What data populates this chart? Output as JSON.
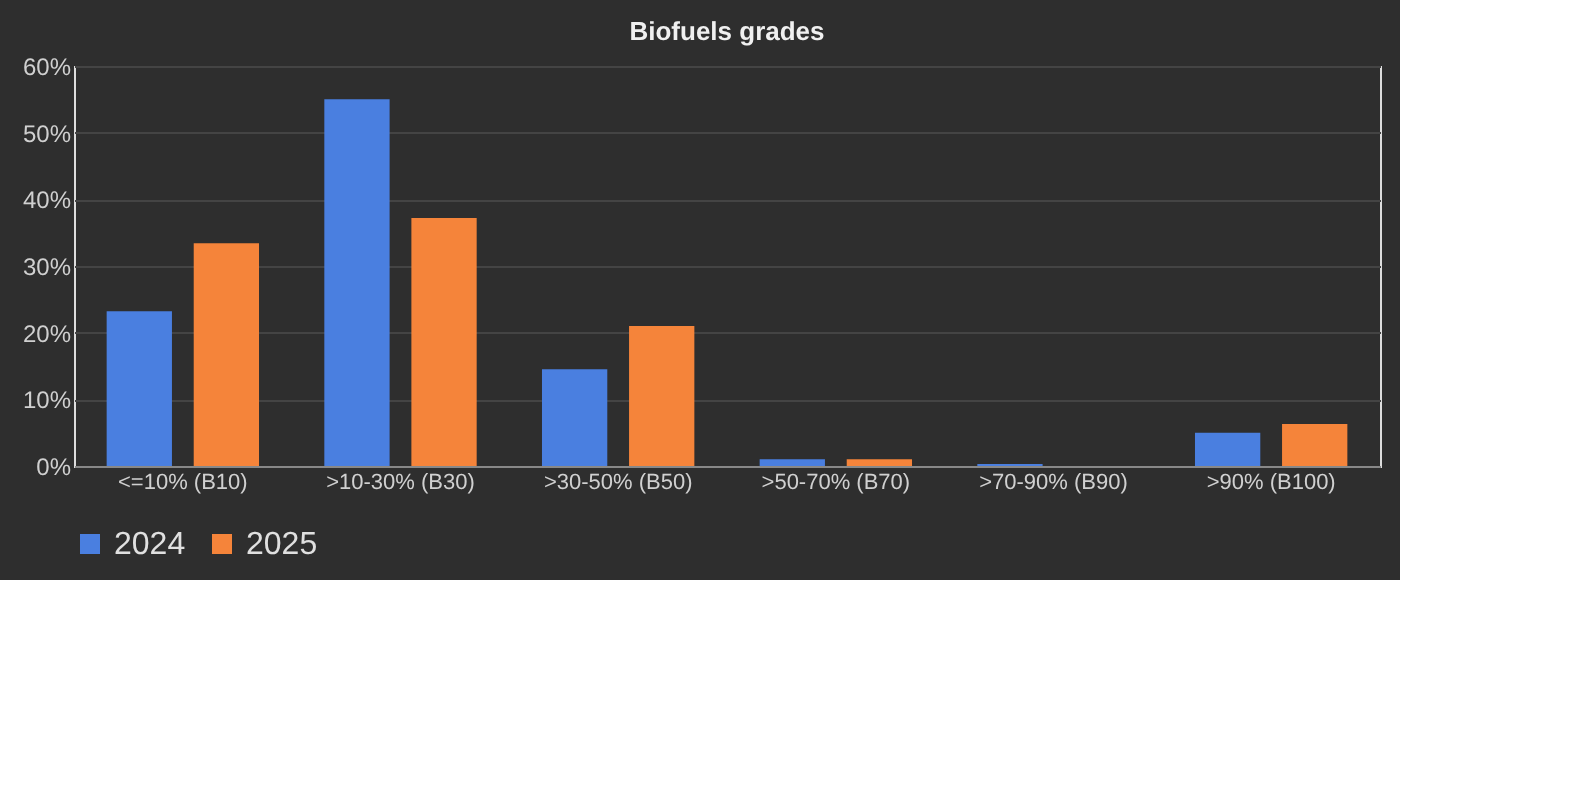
{
  "chart_data": {
    "type": "bar",
    "title": "Biofuels grades",
    "categories": [
      "<=10% (B10)",
      ">10-30% (B30)",
      ">30-50% (B50)",
      ">50-70% (B70)",
      ">70-90% (B90)",
      ">90% (B100)"
    ],
    "series": [
      {
        "name": "2024",
        "color": "#4a7fe0",
        "values": [
          23.2,
          55,
          14.5,
          1,
          0.3,
          5
        ]
      },
      {
        "name": "2025",
        "color": "#f5843a",
        "values": [
          33.4,
          37.2,
          21,
          1,
          null,
          6.3
        ]
      }
    ],
    "ylim": [
      0,
      60
    ],
    "yticks": [
      {
        "value": 0,
        "label": "0%"
      },
      {
        "value": 10,
        "label": "10%"
      },
      {
        "value": 20,
        "label": "20%"
      },
      {
        "value": 30,
        "label": "30%"
      },
      {
        "value": 40,
        "label": "40%"
      },
      {
        "value": 50,
        "label": "50%"
      },
      {
        "value": 60,
        "label": "60%"
      }
    ],
    "grid": "y",
    "legend": "bottom"
  }
}
